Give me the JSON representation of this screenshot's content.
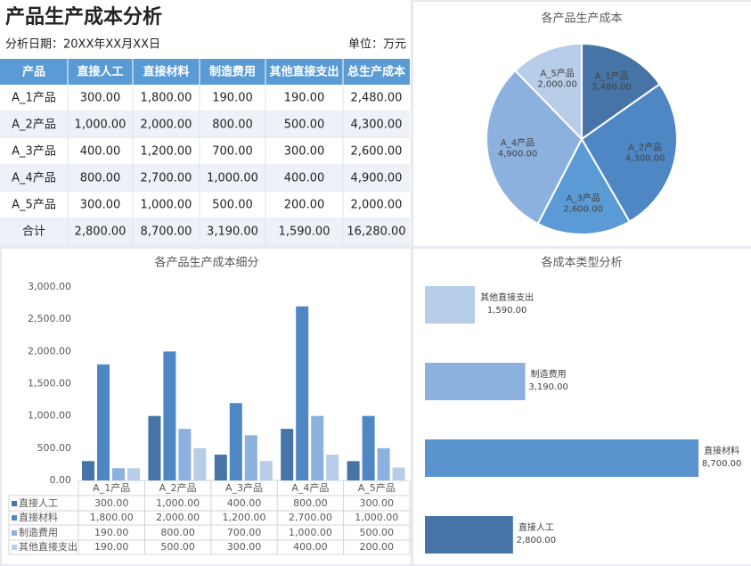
{
  "header": {
    "title": "产品生产成本分析",
    "date": "分析日期：20XX年XX月XX日",
    "unit": "单位：万元"
  },
  "table": {
    "columns": [
      "产品",
      "直接人工",
      "直接材料",
      "制造费用",
      "其他直接支出",
      "总生产成本"
    ],
    "rows": [
      [
        "A_1产品",
        "300.00",
        "1,800.00",
        "190.00",
        "190.00",
        "2,480.00"
      ],
      [
        "A_2产品",
        "1,000.00",
        "2,000.00",
        "800.00",
        "500.00",
        "4,300.00"
      ],
      [
        "A_3产品",
        "400.00",
        "1,200.00",
        "700.00",
        "300.00",
        "2,600.00"
      ],
      [
        "A_4产品",
        "800.00",
        "2,700.00",
        "1,000.00",
        "400.00",
        "4,900.00"
      ],
      [
        "A_5产品",
        "300.00",
        "1,000.00",
        "500.00",
        "200.00",
        "2,000.00"
      ],
      [
        "合计",
        "2,800.00",
        "8,700.00",
        "3,190.00",
        "1,590.00",
        "16,280.00"
      ]
    ]
  },
  "chart_data": [
    {
      "type": "pie",
      "title": "各产品生产成本",
      "categories": [
        "A_1产品",
        "A_2产品",
        "A_3产品",
        "A_4产品",
        "A_5产品"
      ],
      "values": [
        2480,
        4300,
        2600,
        4900,
        2000
      ],
      "value_labels": [
        "2,480.00",
        "4,300.00",
        "2,600.00",
        "4,900.00",
        "2,000.00"
      ],
      "colors": [
        "#4674a6",
        "#4f87c4",
        "#5b9bd5",
        "#8db1de",
        "#b7cde8"
      ]
    },
    {
      "type": "bar",
      "title": "各产品生产成本细分",
      "categories": [
        "A_1产品",
        "A_2产品",
        "A_3产品",
        "A_4产品",
        "A_5产品"
      ],
      "series": [
        {
          "name": "直接人工",
          "color": "#4674a6",
          "values": [
            300,
            1000,
            400,
            800,
            300
          ],
          "value_labels": [
            "300.00",
            "1,000.00",
            "400.00",
            "800.00",
            "300.00"
          ]
        },
        {
          "name": "直接材料",
          "color": "#4f87c4",
          "values": [
            1800,
            2000,
            1200,
            2700,
            1000
          ],
          "value_labels": [
            "1,800.00",
            "2,000.00",
            "1,200.00",
            "2,700.00",
            "1,000.00"
          ]
        },
        {
          "name": "制造费用",
          "color": "#8db1de",
          "values": [
            190,
            800,
            700,
            1000,
            500
          ],
          "value_labels": [
            "190.00",
            "800.00",
            "700.00",
            "1,000.00",
            "500.00"
          ]
        },
        {
          "name": "其他直接支出",
          "color": "#b7cde8",
          "values": [
            190,
            500,
            300,
            400,
            200
          ],
          "value_labels": [
            "190.00",
            "500.00",
            "300.00",
            "400.00",
            "200.00"
          ]
        }
      ],
      "ylim": [
        0,
        3000
      ],
      "yticks": [
        {
          "value": 0,
          "label": "0.00"
        },
        {
          "value": 500,
          "label": "500.00"
        },
        {
          "value": 1000,
          "label": "1,000.00"
        },
        {
          "value": 1500,
          "label": "1,500.00"
        },
        {
          "value": 2000,
          "label": "2,000.00"
        },
        {
          "value": 2500,
          "label": "2,500.00"
        },
        {
          "value": 3000,
          "label": "3,000.00"
        }
      ]
    },
    {
      "type": "hbar",
      "title": "各成本类型分析",
      "categories": [
        "其他直接支出",
        "制造费用",
        "直接材料",
        "直接人工"
      ],
      "values": [
        1590,
        3190,
        8700,
        2800
      ],
      "value_labels": [
        "1,590.00",
        "3,190.00",
        "8,700.00",
        "2,800.00"
      ],
      "colors": [
        "#b7cde8",
        "#8db1de",
        "#5b93cf",
        "#4674a6"
      ],
      "xlim": [
        0,
        10000
      ]
    }
  ]
}
